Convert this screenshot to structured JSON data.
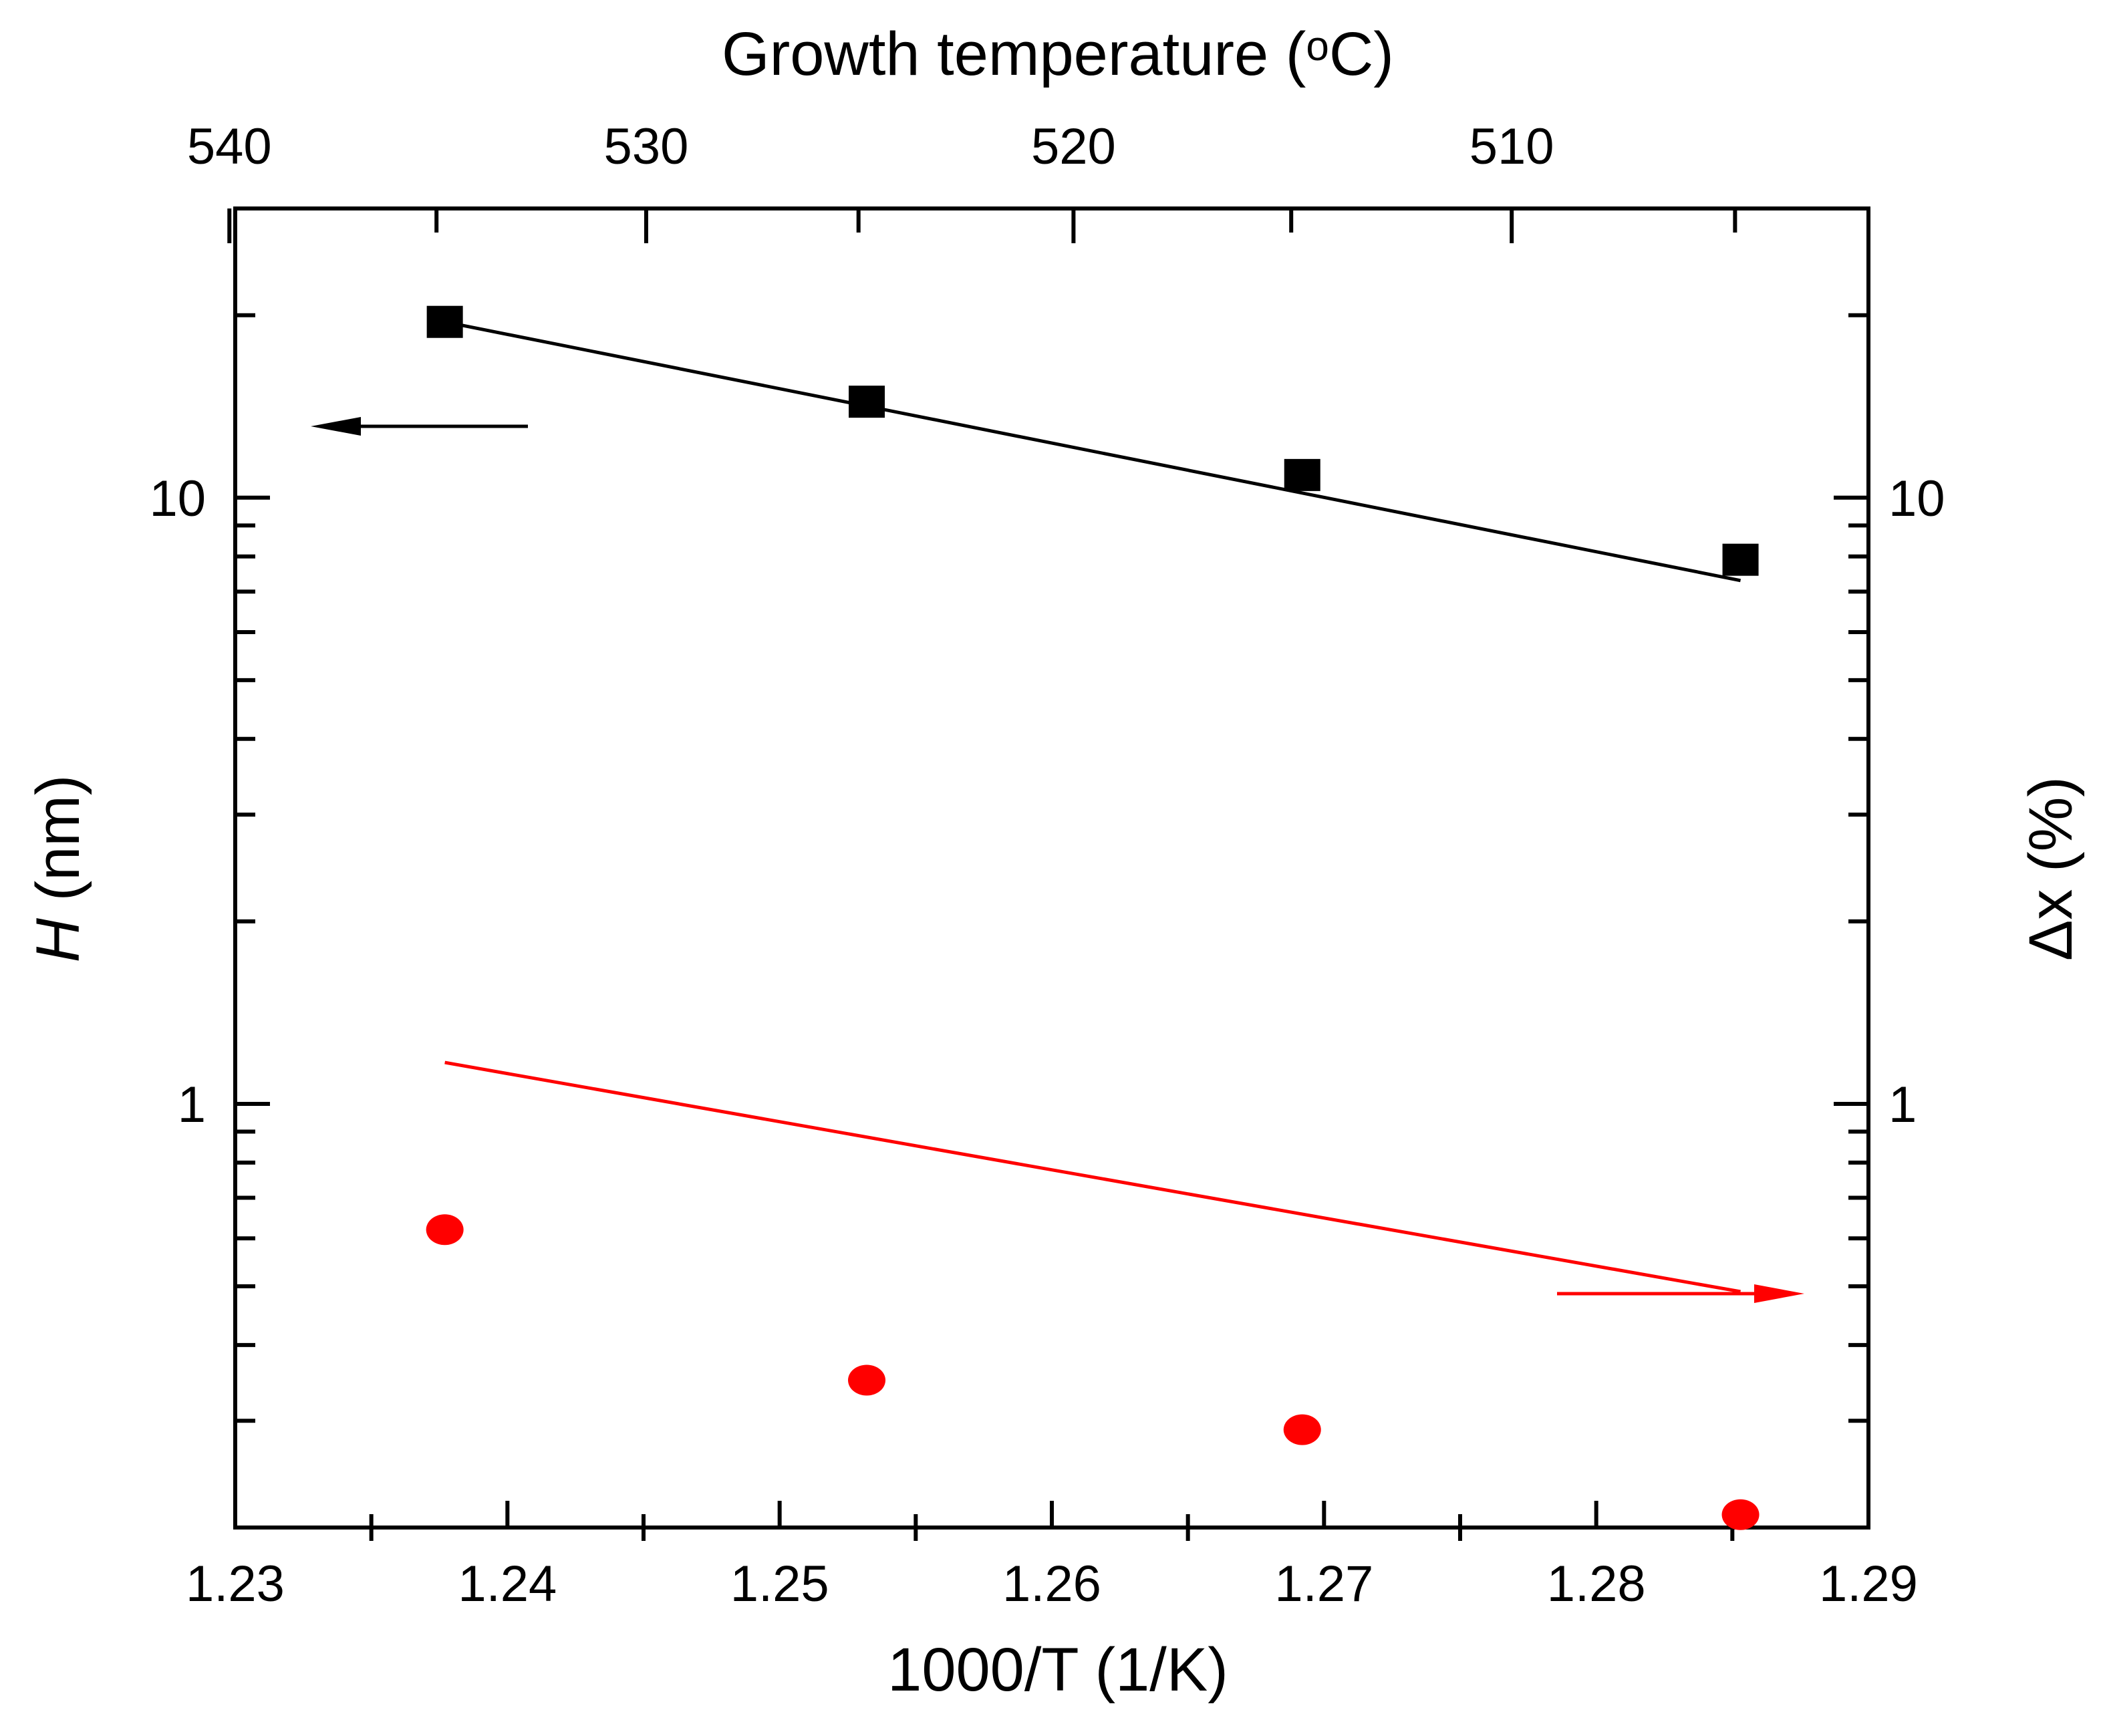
{
  "chart_data": {
    "type": "scatter",
    "title": "",
    "x": [
      1.2377,
      1.2532,
      1.2692,
      1.2853
    ],
    "xlabel": "1000/T (1/K)",
    "xlim": [
      1.23,
      1.29
    ],
    "xticks": [
      1.23,
      1.24,
      1.25,
      1.26,
      1.27,
      1.28,
      1.29
    ],
    "xtick_labels": [
      "1.23",
      "1.24",
      "1.25",
      "1.26",
      "1.27",
      "1.28",
      "1.29"
    ],
    "top_axis": {
      "label_prefix": "Growth temperature (",
      "label_superscript": "o",
      "label_suffix": "C)",
      "ticks_celsius": [
        540,
        530,
        520,
        510
      ],
      "tick_labels": [
        "540",
        "530",
        "520",
        "510"
      ]
    },
    "left_axis": {
      "label_symbol": "H",
      "label_unit": " (nm)",
      "scale": "log",
      "ylim": [
        0.2,
        30
      ],
      "tick_values": [
        1,
        10
      ],
      "tick_labels": [
        "1",
        "10"
      ]
    },
    "right_axis": {
      "label": "Δx (%)",
      "scale": "log",
      "ylim": [
        0.2,
        30
      ],
      "tick_values": [
        1,
        10
      ],
      "tick_labels": [
        "1",
        "10"
      ]
    },
    "series": [
      {
        "name": "H",
        "axis": "left",
        "marker": "square",
        "color": "#000000",
        "values": [
          19.5,
          14.4,
          10.9,
          7.9
        ],
        "fit_line": {
          "x": [
            1.2377,
            1.2853
          ],
          "y": [
            19.5,
            7.3
          ]
        }
      },
      {
        "name": "Δx",
        "axis": "right",
        "marker": "circle",
        "color": "#ff0000",
        "values": [
          0.62,
          0.35,
          0.29,
          0.21
        ],
        "fit_line": {
          "x": [
            1.2377,
            1.2853
          ],
          "y": [
            1.17,
            0.49
          ]
        }
      }
    ],
    "annotations": [
      {
        "type": "arrow",
        "direction": "left",
        "color": "#000000",
        "meaning": "H uses left axis"
      },
      {
        "type": "arrow",
        "direction": "right",
        "color": "#ff0000",
        "meaning": "Δx uses right axis"
      }
    ]
  }
}
